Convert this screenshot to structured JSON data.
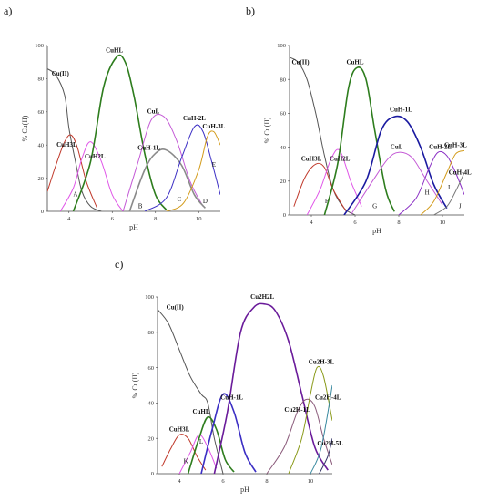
{
  "chart_data": [
    {
      "panel_label": "a)",
      "type": "line",
      "xlabel": "pH",
      "ylabel": "% Cu(II)",
      "xlim": [
        3,
        11
      ],
      "ylim": [
        0,
        100
      ],
      "xticks": [
        4,
        6,
        8,
        10
      ],
      "yticks": [
        0,
        20,
        40,
        60,
        80,
        100
      ],
      "series": [
        {
          "name": "Cu(II)",
          "color": "#555555",
          "x": [
            3,
            3.4,
            3.8,
            4.0,
            4.3,
            4.6,
            5.0,
            5.5
          ],
          "y": [
            86,
            82,
            70,
            50,
            30,
            12,
            3,
            0
          ]
        },
        {
          "name": "CuH3L",
          "color": "#c0392b",
          "x": [
            3,
            3.4,
            3.8,
            4.1,
            4.4,
            4.8,
            5.3
          ],
          "y": [
            12,
            28,
            42,
            46,
            38,
            18,
            2
          ]
        },
        {
          "name": "CuH2L",
          "color": "#e056e8",
          "x": [
            3.6,
            4.2,
            4.6,
            5.0,
            5.5,
            6.0,
            6.5
          ],
          "y": [
            0,
            14,
            32,
            42,
            30,
            10,
            0
          ]
        },
        {
          "name": "CuHL",
          "color": "#2e7d1e",
          "x": [
            4.2,
            5.0,
            5.6,
            6.2,
            6.6,
            7.0,
            7.5,
            8.0,
            8.5
          ],
          "y": [
            0,
            30,
            75,
            93,
            90,
            70,
            35,
            10,
            1
          ]
        },
        {
          "name": "CuL",
          "color": "#c45ad6",
          "x": [
            6.5,
            7.2,
            7.8,
            8.4,
            9.0,
            9.6,
            10.2
          ],
          "y": [
            0,
            30,
            55,
            57,
            42,
            18,
            3
          ]
        },
        {
          "name": "CuH-1L",
          "color": "#8a8a8a",
          "x": [
            6.8,
            7.5,
            8.0,
            8.5,
            9.2,
            9.8,
            10.3
          ],
          "y": [
            0,
            25,
            35,
            37,
            28,
            10,
            2
          ]
        },
        {
          "name": "CuH-2L",
          "color": "#3b2ec4",
          "x": [
            7.5,
            8.5,
            9.2,
            9.8,
            10.2,
            10.6,
            11.0
          ],
          "y": [
            0,
            8,
            32,
            51,
            48,
            30,
            10
          ]
        },
        {
          "name": "CuH-3L",
          "color": "#d39b1a",
          "x": [
            8.5,
            9.3,
            10.0,
            10.4,
            10.7,
            11.0
          ],
          "y": [
            0,
            5,
            25,
            45,
            48,
            40
          ]
        }
      ],
      "annotations": [
        {
          "text": "CuH3L",
          "x": 3.9,
          "y": 39
        },
        {
          "text": "Cu(II)",
          "x": 3.6,
          "y": 82
        },
        {
          "text": "CuH2L",
          "x": 5.2,
          "y": 32
        },
        {
          "text": "CuHL",
          "x": 6.1,
          "y": 96
        },
        {
          "text": "CuL",
          "x": 7.9,
          "y": 59
        },
        {
          "text": "CuH-1L",
          "x": 7.7,
          "y": 37
        },
        {
          "text": "CuH-2L",
          "x": 9.8,
          "y": 55
        },
        {
          "text": "CuH-3L",
          "x": 10.7,
          "y": 50
        }
      ],
      "letters": [
        {
          "text": "A",
          "x": 4.3,
          "y": 9
        },
        {
          "text": "B",
          "x": 7.3,
          "y": 2
        },
        {
          "text": "C",
          "x": 9.1,
          "y": 6
        },
        {
          "text": "D",
          "x": 10.3,
          "y": 5
        },
        {
          "text": "E",
          "x": 10.7,
          "y": 27
        }
      ]
    },
    {
      "panel_label": "b)",
      "type": "line",
      "xlabel": "pH",
      "ylabel": "% Cu(II)",
      "xlim": [
        3,
        11
      ],
      "ylim": [
        0,
        100
      ],
      "xticks": [
        4,
        6,
        8,
        10
      ],
      "yticks": [
        0,
        20,
        40,
        60,
        80,
        100
      ],
      "series": [
        {
          "name": "Cu(II)",
          "color": "#555555",
          "x": [
            3,
            3.4,
            3.8,
            4.2,
            4.6,
            5.0,
            5.5,
            6.0
          ],
          "y": [
            93,
            90,
            80,
            60,
            35,
            15,
            4,
            0
          ]
        },
        {
          "name": "CuH3L",
          "color": "#c0392b",
          "x": [
            3.2,
            3.7,
            4.2,
            4.6,
            5.0,
            5.6
          ],
          "y": [
            5,
            22,
            30,
            28,
            15,
            2
          ]
        },
        {
          "name": "CuH2L",
          "color": "#e056e8",
          "x": [
            3.8,
            4.4,
            4.9,
            5.3,
            5.8,
            6.3
          ],
          "y": [
            0,
            15,
            33,
            38,
            20,
            5
          ]
        },
        {
          "name": "CuHL",
          "color": "#2e7d1e",
          "x": [
            4.6,
            5.2,
            5.7,
            6.1,
            6.5,
            6.9,
            7.4,
            7.8
          ],
          "y": [
            0,
            30,
            75,
            87,
            80,
            50,
            15,
            2
          ]
        },
        {
          "name": "CuH-1L",
          "color": "#1a1aa0",
          "x": [
            5.5,
            6.5,
            7.2,
            7.8,
            8.4,
            9.0,
            9.6,
            10.2
          ],
          "y": [
            0,
            20,
            50,
            58,
            55,
            40,
            18,
            4
          ]
        },
        {
          "name": "CuL",
          "color": "#c45ad6",
          "x": [
            5.8,
            6.8,
            7.5,
            8.0,
            8.6,
            9.2,
            10.0
          ],
          "y": [
            0,
            20,
            33,
            37,
            34,
            22,
            6
          ]
        },
        {
          "name": "CuH-2L",
          "color": "#8a2ec4",
          "x": [
            8.0,
            8.8,
            9.4,
            9.8,
            10.2,
            10.6,
            11.0
          ],
          "y": [
            0,
            10,
            28,
            37,
            35,
            25,
            12
          ]
        },
        {
          "name": "CuH-3L",
          "color": "#d39b1a",
          "x": [
            9.0,
            9.6,
            10.2,
            10.6,
            11.0
          ],
          "y": [
            0,
            8,
            25,
            36,
            38
          ]
        },
        {
          "name": "CuH-4L",
          "color": "#777777",
          "x": [
            9.6,
            10.2,
            10.6,
            11.0
          ],
          "y": [
            0,
            5,
            14,
            25
          ]
        }
      ],
      "annotations": [
        {
          "text": "Cu(II)",
          "x": 3.5,
          "y": 89
        },
        {
          "text": "CuH3L",
          "x": 4.0,
          "y": 32
        },
        {
          "text": "CuH2L",
          "x": 5.3,
          "y": 32
        },
        {
          "text": "CuHL",
          "x": 6.0,
          "y": 89
        },
        {
          "text": "CuH-1L",
          "x": 8.1,
          "y": 61
        },
        {
          "text": "CuL",
          "x": 7.9,
          "y": 39
        },
        {
          "text": "CuH-2L",
          "x": 9.9,
          "y": 39
        },
        {
          "text": "CuH-3L",
          "x": 10.6,
          "y": 40
        },
        {
          "text": "CuH-4L",
          "x": 10.8,
          "y": 24
        }
      ],
      "letters": [
        {
          "text": "F",
          "x": 4.7,
          "y": 7
        },
        {
          "text": "G",
          "x": 6.9,
          "y": 4
        },
        {
          "text": "H",
          "x": 9.3,
          "y": 12
        },
        {
          "text": "I",
          "x": 10.3,
          "y": 15
        },
        {
          "text": "J",
          "x": 10.8,
          "y": 4
        }
      ]
    },
    {
      "panel_label": "c)",
      "type": "line",
      "xlabel": "pH",
      "ylabel": "% Cu(II)",
      "xlim": [
        3,
        11
      ],
      "ylim": [
        0,
        100
      ],
      "xticks": [
        4,
        6,
        8,
        10
      ],
      "yticks": [
        0,
        20,
        40,
        60,
        80,
        100
      ],
      "series": [
        {
          "name": "Cu(II)",
          "color": "#555555",
          "x": [
            3,
            3.5,
            4.0,
            4.5,
            5.0,
            5.3,
            5.6,
            6.0
          ],
          "y": [
            93,
            85,
            70,
            55,
            45,
            40,
            20,
            0
          ]
        },
        {
          "name": "CuH3L",
          "color": "#c0392b",
          "x": [
            3.2,
            3.6,
            4.0,
            4.4,
            4.8,
            5.2
          ],
          "y": [
            4,
            14,
            22,
            20,
            10,
            2
          ]
        },
        {
          "name": "CuH2L",
          "color": "#e056e8",
          "x": [
            4.0,
            4.5,
            4.9,
            5.3,
            5.7
          ],
          "y": [
            0,
            12,
            22,
            15,
            3
          ]
        },
        {
          "name": "CuHL",
          "color": "#2e7d1e",
          "x": [
            4.4,
            4.9,
            5.3,
            5.7,
            6.1,
            6.5
          ],
          "y": [
            0,
            20,
            32,
            25,
            8,
            1
          ]
        },
        {
          "name": "CuH-1L",
          "color": "#3b2ec4",
          "x": [
            5.0,
            5.5,
            6.0,
            6.5,
            7.0,
            7.5
          ],
          "y": [
            0,
            25,
            45,
            35,
            12,
            1
          ]
        },
        {
          "name": "Cu2H2L",
          "color": "#6a1b9a",
          "x": [
            5.6,
            6.2,
            6.8,
            7.4,
            7.9,
            8.4,
            9.0,
            9.6,
            10.2,
            10.8
          ],
          "y": [
            0,
            35,
            80,
            94,
            96,
            92,
            75,
            45,
            15,
            2
          ]
        },
        {
          "name": "Cu2H-1L",
          "color": "#8a5a7a",
          "x": [
            8.0,
            8.8,
            9.4,
            9.8,
            10.2,
            10.6,
            11.0
          ],
          "y": [
            0,
            15,
            35,
            42,
            38,
            20,
            5
          ]
        },
        {
          "name": "Cu2H-3L",
          "color": "#8a9a1a",
          "x": [
            9.0,
            9.6,
            10.0,
            10.3,
            10.6,
            11.0
          ],
          "y": [
            0,
            20,
            45,
            60,
            55,
            30
          ]
        },
        {
          "name": "Cu2H-4L",
          "color": "#3a8aa0",
          "x": [
            10.0,
            10.5,
            11.0
          ],
          "y": [
            0,
            15,
            50
          ]
        },
        {
          "name": "Cu2H-5L",
          "color": "#333366",
          "x": [
            10.4,
            10.8,
            11.0
          ],
          "y": [
            0,
            10,
            20
          ]
        }
      ],
      "annotations": [
        {
          "text": "Cu(II)",
          "x": 3.8,
          "y": 93
        },
        {
          "text": "CuH3L",
          "x": 4.0,
          "y": 24
        },
        {
          "text": "CuHL",
          "x": 5.0,
          "y": 34
        },
        {
          "text": "Cu2H2L",
          "x": 7.8,
          "y": 99
        },
        {
          "text": "CuH-1L",
          "x": 6.4,
          "y": 42
        },
        {
          "text": "Cu2H-1L",
          "x": 9.4,
          "y": 35
        },
        {
          "text": "Cu2H-3L",
          "x": 10.5,
          "y": 62
        },
        {
          "text": "Cu2H-4L",
          "x": 10.8,
          "y": 42
        },
        {
          "text": "Cu2H-5L",
          "x": 10.9,
          "y": 16
        }
      ],
      "letters": [
        {
          "text": "K",
          "x": 4.3,
          "y": 6
        },
        {
          "text": "L",
          "x": 5.0,
          "y": 17
        }
      ]
    }
  ]
}
